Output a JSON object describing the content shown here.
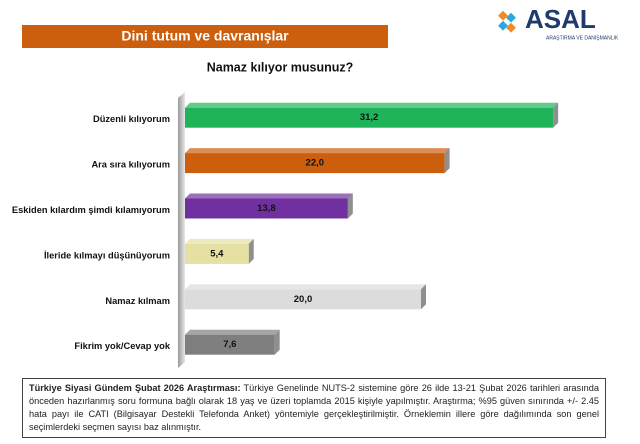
{
  "logo": {
    "name": "ASAL",
    "tagline": "ARAŞTIRMA VE DANIŞMANLIK"
  },
  "chart_data": {
    "type": "bar",
    "orientation": "horizontal",
    "title": "Dini tutum ve davranışlar",
    "subtitle": "Namaz kılıyor musunuz?",
    "categories": [
      "Düzenli kılıyorum",
      "Ara sıra kılıyorum",
      "Eskiden kılardım şimdi kılamıyorum",
      "İleride kılmayı düşünüyorum",
      "Namaz kılmam",
      "Fikrim yok/Cevap yok"
    ],
    "values": [
      31.2,
      22.0,
      13.8,
      5.4,
      20.0,
      7.6
    ],
    "value_labels": [
      "31,2",
      "22,0",
      "13,8",
      "5,4",
      "20,0",
      "7,6"
    ],
    "colors": [
      "#1fb45a",
      "#cc5f0e",
      "#7030a0",
      "#e6e0a2",
      "#dcdcdc",
      "#7f7f7f"
    ],
    "footnote": {
      "title": "Türkiye Siyasi Gündem Şubat 2026 Araştırması:",
      "text": "Türkiye Genelinde NUTS-2 sistemine göre 26 ilde 13-21 Şubat 2026 tarihleri arasında önceden hazırlanmış soru formuna bağlı olarak 18 yaş ve üzeri toplamda 2015 kişiyle yapılmıştır. Araştırma; %95 güven sınırında +/- 2.45 hata payı ile CATI (Bilgisayar Destekli Telefonda Anket) yöntemiyle gerçekleştirilmiştir. Örneklemin illere göre dağılımında son genel seçimlerdeki seçmen sayısı baz alınmıştır."
    }
  }
}
